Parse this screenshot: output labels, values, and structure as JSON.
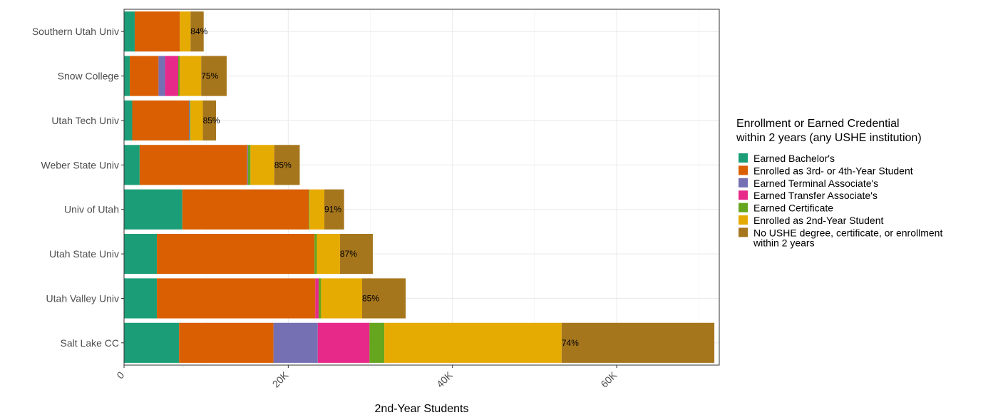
{
  "chart_data": {
    "type": "bar",
    "orientation": "horizontal",
    "stacked": true,
    "xlabel": "2nd-Year Students",
    "ylabel": "",
    "xlim": [
      0,
      72500
    ],
    "x_ticks": [
      0,
      20000,
      40000,
      60000
    ],
    "x_tick_labels": [
      "0",
      "20K",
      "40K",
      "60K"
    ],
    "grid": true,
    "legend_position": "right",
    "legend_title": [
      "Enrollment or Earned Credential",
      "within 2 years (any USHE institution)"
    ],
    "categories": [
      "Southern Utah Univ",
      "Snow College",
      "Utah Tech Univ",
      "Weber State Univ",
      "Univ of Utah",
      "Utah State Univ",
      "Utah Valley Univ",
      "Salt Lake CC"
    ],
    "series": [
      {
        "name": "Earned Bachelor's",
        "color": "#1b9e77",
        "values": [
          1300,
          700,
          1000,
          1900,
          7100,
          4000,
          4000,
          6700
        ]
      },
      {
        "name": "Enrolled as 3rd- or 4th-Year Student",
        "color": "#d95f02",
        "values": [
          5500,
          3500,
          6900,
          13100,
          15400,
          19200,
          19300,
          11500
        ]
      },
      {
        "name": "Earned Terminal Associate's",
        "color": "#7570b3",
        "values": [
          0,
          800,
          100,
          100,
          0,
          0,
          0,
          5400
        ]
      },
      {
        "name": "Earned Transfer Associate's",
        "color": "#e7298a",
        "values": [
          0,
          1600,
          0,
          0,
          0,
          0,
          400,
          6300
        ]
      },
      {
        "name": "Earned Certificate",
        "color": "#66a61e",
        "values": [
          0,
          200,
          100,
          300,
          100,
          300,
          300,
          1800
        ]
      },
      {
        "name": "Enrolled as 2nd-Year Student",
        "color": "#e6ab02",
        "values": [
          1300,
          2600,
          1500,
          2900,
          1800,
          2800,
          5000,
          21600
        ]
      },
      {
        "name": "No USHE degree, certificate, or enrollment\nwithin 2 years",
        "color": "#a6761d",
        "values": [
          1600,
          3100,
          1600,
          3100,
          2400,
          4000,
          5300,
          18600
        ]
      }
    ],
    "bar_labels": [
      "84%",
      "75%",
      "85%",
      "85%",
      "91%",
      "87%",
      "85%",
      "74%"
    ],
    "bar_label_series_index": 6
  }
}
